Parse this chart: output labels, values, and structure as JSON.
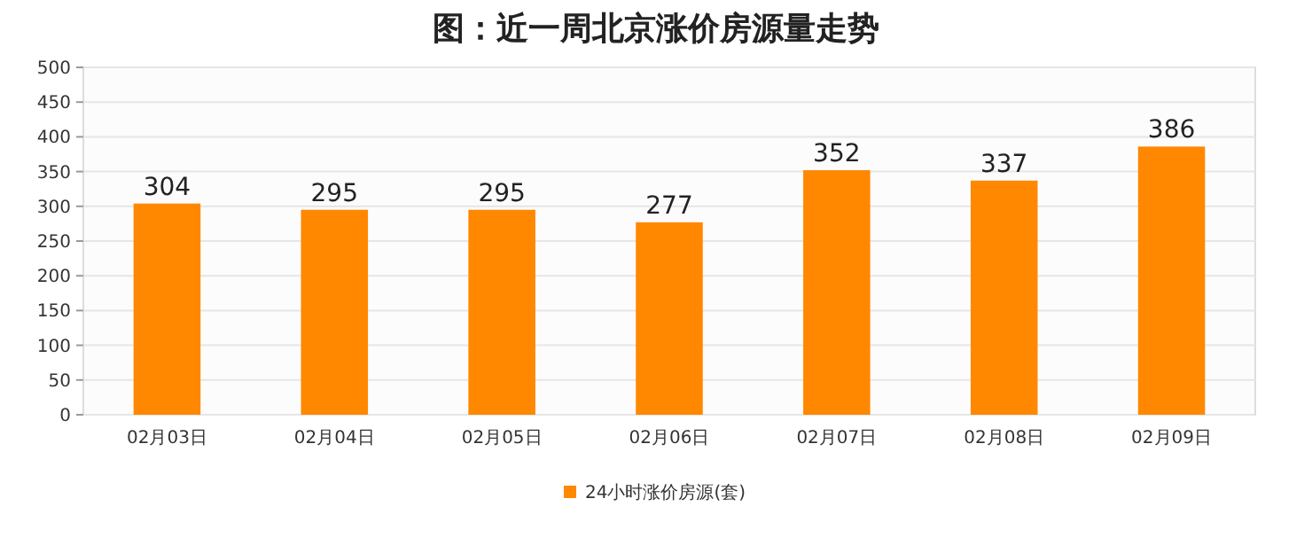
{
  "chart_data": {
    "type": "bar",
    "title": "图：近一周北京涨价房源量走势",
    "categories": [
      "02月03日",
      "02月04日",
      "02月05日",
      "02月06日",
      "02月07日",
      "02月08日",
      "02月09日"
    ],
    "series": [
      {
        "name": "24小时涨价房源(套)",
        "color": "#ff8800",
        "values": [
          304,
          295,
          295,
          277,
          352,
          337,
          386
        ]
      }
    ],
    "ylim": [
      0,
      500
    ],
    "yticks": [
      0,
      50,
      100,
      150,
      200,
      250,
      300,
      350,
      400,
      450,
      500
    ],
    "grid": "y",
    "legend": "bottom",
    "data_labels": true
  }
}
